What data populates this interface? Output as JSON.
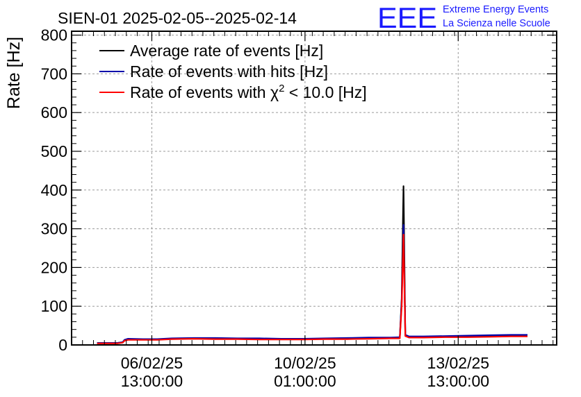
{
  "chart_data": {
    "type": "line",
    "title": "SIEN-01 2025-02-05--2025-02-14",
    "ylabel": "Rate [Hz]",
    "xlabel": "",
    "ylim": [
      0,
      810
    ],
    "y_ticks": [
      0,
      100,
      200,
      300,
      400,
      500,
      600,
      700,
      800
    ],
    "x_axis": {
      "start": "2025-02-04 17:00",
      "end": "2025-02-15 19:00"
    },
    "x_ticks": [
      {
        "date": "06/02/25",
        "time": "13:00:00",
        "at": "2025-02-06 13:00"
      },
      {
        "date": "10/02/25",
        "time": "01:00:00",
        "at": "2025-02-10 01:00"
      },
      {
        "date": "13/02/25",
        "time": "13:00:00",
        "at": "2025-02-13 13:00"
      }
    ],
    "grid": true,
    "legend_position": "top-left",
    "series": [
      {
        "name": "Average rate of events [Hz]",
        "color": "#000000",
        "points": [
          [
            "2025-02-05 07:00",
            5
          ],
          [
            "2025-02-05 12:00",
            5
          ],
          [
            "2025-02-05 18:00",
            5
          ],
          [
            "2025-02-05 21:00",
            7
          ],
          [
            "2025-02-05 22:00",
            12
          ],
          [
            "2025-02-06 00:00",
            15
          ],
          [
            "2025-02-06 08:00",
            14
          ],
          [
            "2025-02-06 16:00",
            14
          ],
          [
            "2025-02-07 00:00",
            16
          ],
          [
            "2025-02-07 12:00",
            17
          ],
          [
            "2025-02-08 00:00",
            17
          ],
          [
            "2025-02-08 12:00",
            16
          ],
          [
            "2025-02-09 00:00",
            16
          ],
          [
            "2025-02-09 12:00",
            15
          ],
          [
            "2025-02-10 00:00",
            15
          ],
          [
            "2025-02-10 12:00",
            16
          ],
          [
            "2025-02-11 00:00",
            17
          ],
          [
            "2025-02-11 12:00",
            18
          ],
          [
            "2025-02-12 00:00",
            18
          ],
          [
            "2025-02-12 05:00",
            19
          ],
          [
            "2025-02-12 06:00",
            120
          ],
          [
            "2025-02-12 07:00",
            410
          ],
          [
            "2025-02-12 08:00",
            25
          ],
          [
            "2025-02-12 10:00",
            20
          ],
          [
            "2025-02-12 18:00",
            20
          ],
          [
            "2025-02-13 06:00",
            21
          ],
          [
            "2025-02-13 18:00",
            22
          ],
          [
            "2025-02-14 06:00",
            23
          ],
          [
            "2025-02-14 18:00",
            24
          ],
          [
            "2025-02-15 03:00",
            24
          ]
        ]
      },
      {
        "name": "Rate of events with hits [Hz]",
        "color": "#0000aa",
        "points": [
          [
            "2025-02-05 07:00",
            5
          ],
          [
            "2025-02-05 12:00",
            5
          ],
          [
            "2025-02-05 18:00",
            5
          ],
          [
            "2025-02-05 21:00",
            7
          ],
          [
            "2025-02-05 22:00",
            13
          ],
          [
            "2025-02-06 00:00",
            16
          ],
          [
            "2025-02-06 08:00",
            15
          ],
          [
            "2025-02-06 16:00",
            15
          ],
          [
            "2025-02-07 00:00",
            17
          ],
          [
            "2025-02-07 12:00",
            18
          ],
          [
            "2025-02-08 00:00",
            18
          ],
          [
            "2025-02-08 12:00",
            17
          ],
          [
            "2025-02-09 00:00",
            17
          ],
          [
            "2025-02-09 12:00",
            16
          ],
          [
            "2025-02-10 00:00",
            16
          ],
          [
            "2025-02-10 12:00",
            17
          ],
          [
            "2025-02-11 00:00",
            18
          ],
          [
            "2025-02-11 12:00",
            19
          ],
          [
            "2025-02-12 00:00",
            19
          ],
          [
            "2025-02-12 05:00",
            20
          ],
          [
            "2025-02-12 06:00",
            110
          ],
          [
            "2025-02-12 07:00",
            310
          ],
          [
            "2025-02-12 08:00",
            26
          ],
          [
            "2025-02-12 10:00",
            22
          ],
          [
            "2025-02-12 18:00",
            22
          ],
          [
            "2025-02-13 06:00",
            23
          ],
          [
            "2025-02-13 18:00",
            24
          ],
          [
            "2025-02-14 06:00",
            25
          ],
          [
            "2025-02-14 18:00",
            26
          ],
          [
            "2025-02-15 03:00",
            26
          ]
        ]
      },
      {
        "name": "Rate of events with χ2 < 10.0 [Hz]",
        "color": "#ff0000",
        "points": [
          [
            "2025-02-05 07:00",
            4
          ],
          [
            "2025-02-05 12:00",
            4
          ],
          [
            "2025-02-05 18:00",
            4
          ],
          [
            "2025-02-05 21:00",
            6
          ],
          [
            "2025-02-05 22:00",
            11
          ],
          [
            "2025-02-06 00:00",
            13
          ],
          [
            "2025-02-06 08:00",
            13
          ],
          [
            "2025-02-06 16:00",
            13
          ],
          [
            "2025-02-07 00:00",
            15
          ],
          [
            "2025-02-07 12:00",
            16
          ],
          [
            "2025-02-08 00:00",
            15
          ],
          [
            "2025-02-08 12:00",
            15
          ],
          [
            "2025-02-09 00:00",
            14
          ],
          [
            "2025-02-09 12:00",
            14
          ],
          [
            "2025-02-10 00:00",
            14
          ],
          [
            "2025-02-10 12:00",
            15
          ],
          [
            "2025-02-11 00:00",
            15
          ],
          [
            "2025-02-11 12:00",
            16
          ],
          [
            "2025-02-12 00:00",
            17
          ],
          [
            "2025-02-12 05:00",
            17
          ],
          [
            "2025-02-12 06:00",
            100
          ],
          [
            "2025-02-12 07:00",
            285
          ],
          [
            "2025-02-12 08:00",
            23
          ],
          [
            "2025-02-12 10:00",
            19
          ],
          [
            "2025-02-12 18:00",
            19
          ],
          [
            "2025-02-13 06:00",
            20
          ],
          [
            "2025-02-13 18:00",
            20
          ],
          [
            "2025-02-14 06:00",
            21
          ],
          [
            "2025-02-14 18:00",
            22
          ],
          [
            "2025-02-15 03:00",
            22
          ]
        ]
      }
    ]
  },
  "logo": {
    "text": "EEE",
    "line1": "Extreme Energy Events",
    "line2": "La Scienza nelle Scuole",
    "color": "#1a1aff"
  }
}
